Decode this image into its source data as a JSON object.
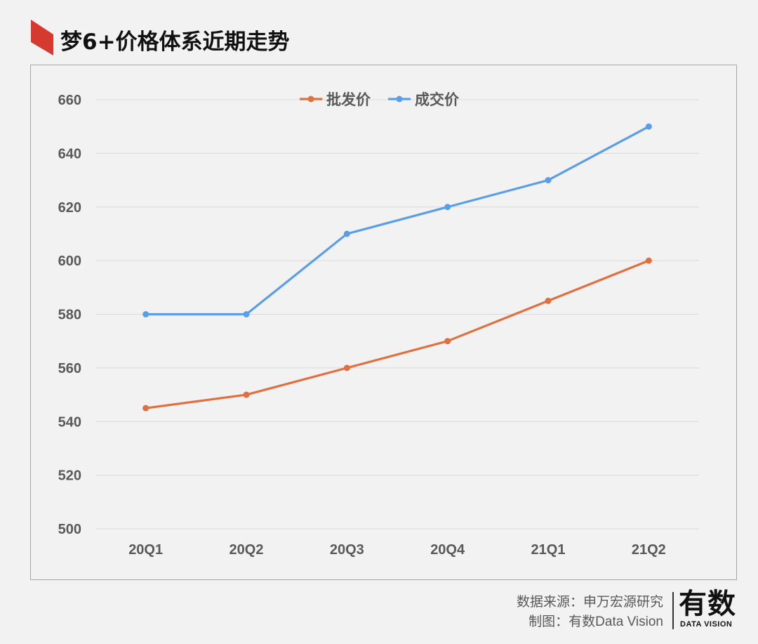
{
  "header": {
    "title": "梦6+价格体系近期走势",
    "accent_color": "#d63a2f"
  },
  "chart_data": {
    "type": "line",
    "title": "梦6+价格体系近期走势",
    "categories": [
      "20Q1",
      "20Q2",
      "20Q3",
      "20Q4",
      "21Q1",
      "21Q2"
    ],
    "series": [
      {
        "name": "批发价",
        "color": "#e07040",
        "values": [
          545,
          550,
          560,
          570,
          585,
          600
        ]
      },
      {
        "name": "成交价",
        "color": "#5b9ee8",
        "values": [
          580,
          580,
          610,
          620,
          630,
          650
        ]
      }
    ],
    "ylim": [
      500,
      660
    ],
    "yticks": [
      500,
      520,
      540,
      560,
      580,
      600,
      620,
      640,
      660
    ],
    "xlabel": "",
    "ylabel": "",
    "grid": true,
    "legend_position": "top"
  },
  "footer": {
    "source_line": "数据来源：申万宏源研究",
    "credit_line": "制图：有数Data Vision",
    "logo_text": "有数",
    "logo_subtext": "DATA VISION"
  }
}
